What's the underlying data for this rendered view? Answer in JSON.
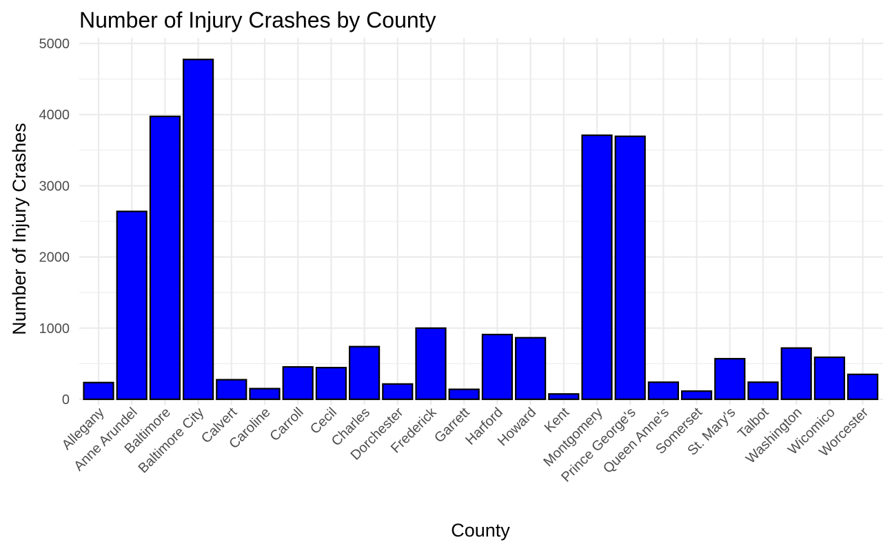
{
  "chart_data": {
    "type": "bar",
    "title": "Number of Injury Crashes by County",
    "xlabel": "County",
    "ylabel": "Number of Injury Crashes",
    "ylim": [
      0,
      5000
    ],
    "yticks": [
      0,
      1000,
      2000,
      3000,
      4000,
      5000
    ],
    "grid": true,
    "legend": "none",
    "categories": [
      "Allegany",
      "Anne Arundel",
      "Baltimore",
      "Baltimore City",
      "Calvert",
      "Caroline",
      "Carroll",
      "Cecil",
      "Charles",
      "Dorchester",
      "Frederick",
      "Garrett",
      "Harford",
      "Howard",
      "Kent",
      "Montgomery",
      "Prince George's",
      "Queen Anne's",
      "Somerset",
      "St. Mary's",
      "Talbot",
      "Washington",
      "Wicomico",
      "Worcester"
    ],
    "values": [
      235,
      2640,
      3975,
      4775,
      275,
      150,
      455,
      445,
      740,
      215,
      1000,
      140,
      910,
      865,
      75,
      3710,
      3695,
      240,
      115,
      570,
      240,
      720,
      590,
      350
    ],
    "bar_fill": "#0000ff",
    "bar_stroke": "#000000"
  }
}
